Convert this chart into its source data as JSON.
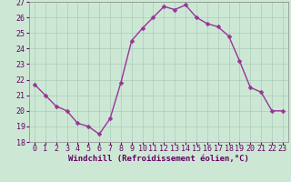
{
  "x": [
    0,
    1,
    2,
    3,
    4,
    5,
    6,
    7,
    8,
    9,
    10,
    11,
    12,
    13,
    14,
    15,
    16,
    17,
    18,
    19,
    20,
    21,
    22,
    23
  ],
  "y": [
    21.7,
    21.0,
    20.3,
    20.0,
    19.2,
    19.0,
    18.5,
    19.5,
    21.8,
    24.5,
    25.3,
    26.0,
    26.7,
    26.5,
    26.8,
    26.0,
    25.6,
    25.4,
    24.8,
    23.2,
    21.5,
    21.2,
    20.0,
    20.0
  ],
  "line_color": "#993399",
  "marker_color": "#993399",
  "bg_color": "#cce8d4",
  "grid_color": "#aaccbb",
  "xlabel": "Windchill (Refroidissement éolien,°C)",
  "ylim": [
    18,
    27
  ],
  "xlim_min": -0.5,
  "xlim_max": 23.5,
  "yticks": [
    18,
    19,
    20,
    21,
    22,
    23,
    24,
    25,
    26,
    27
  ],
  "xticks": [
    0,
    1,
    2,
    3,
    4,
    5,
    6,
    7,
    8,
    9,
    10,
    11,
    12,
    13,
    14,
    15,
    16,
    17,
    18,
    19,
    20,
    21,
    22,
    23
  ],
  "xlabel_fontsize": 6.5,
  "tick_fontsize": 6.0,
  "marker_size": 2.5,
  "line_width": 1.0
}
